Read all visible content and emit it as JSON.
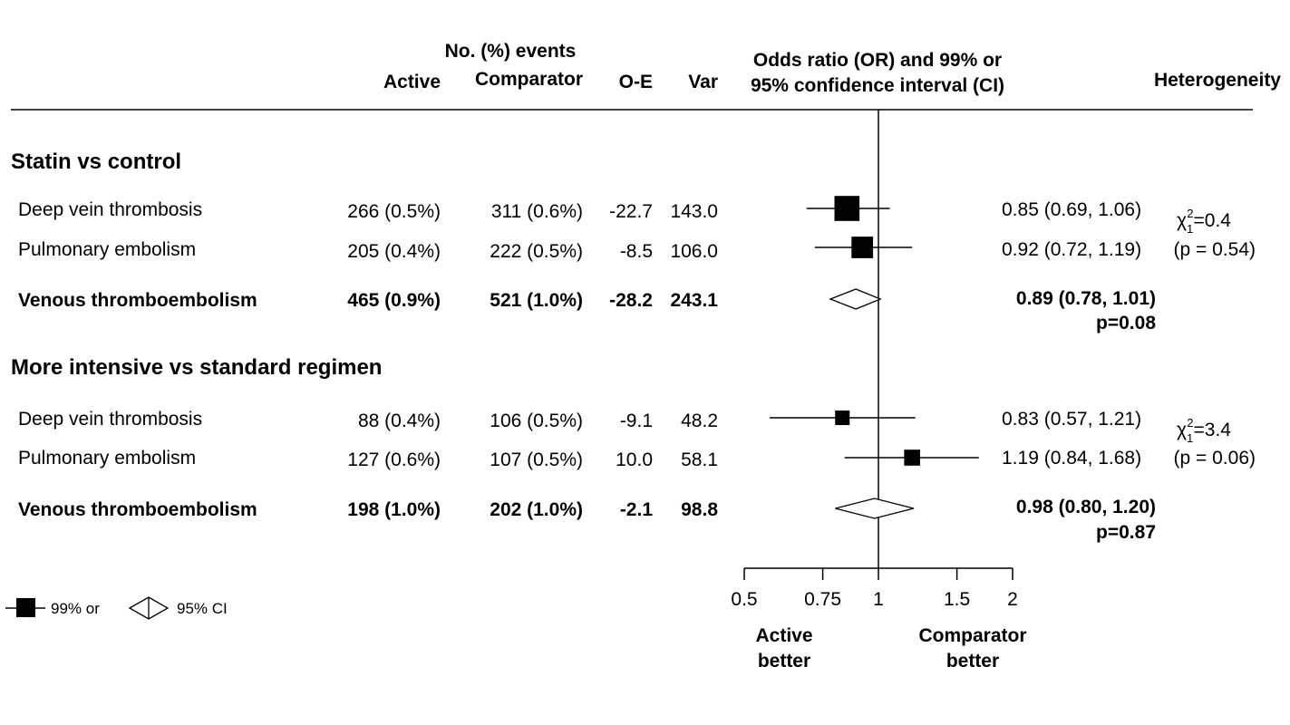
{
  "headers": {
    "events_group": "No. (%) events",
    "active": "Active",
    "comparator": "Comparator",
    "oe": "O-E",
    "var": "Var",
    "or_line1": "Odds ratio (OR) and 99% or",
    "or_line2": "95% confidence interval (CI)",
    "heterogeneity": "Heterogeneity"
  },
  "legend": {
    "square_label": "99% or",
    "diamond_label": "95% CI"
  },
  "axis": {
    "scale": "log",
    "ticks": [
      0.5,
      0.75,
      1,
      1.5,
      2
    ],
    "tick_labels": [
      "0.5",
      "0.75",
      "1",
      "1.5",
      "2"
    ],
    "left_label_1": "Active",
    "left_label_2": "better",
    "right_label_1": "Comparator",
    "right_label_2": "better"
  },
  "chart_data": {
    "type": "forest",
    "xscale": "log",
    "xlim": [
      0.5,
      2
    ],
    "reference_line": 1,
    "groups": [
      {
        "title": "Statin vs control",
        "rows": [
          {
            "label": "Deep vein thrombosis",
            "active": "266 (0.5%)",
            "comparator": "311 (0.6%)",
            "oe": "-22.7",
            "var": "143.0",
            "or": 0.85,
            "lo": 0.69,
            "hi": 1.06,
            "ci_text": "0.85 (0.69, 1.06)",
            "weight": 143.0,
            "summary": false
          },
          {
            "label": "Pulmonary embolism",
            "active": "205 (0.4%)",
            "comparator": "222 (0.5%)",
            "oe": "-8.5",
            "var": "106.0",
            "or": 0.92,
            "lo": 0.72,
            "hi": 1.19,
            "ci_text": "0.92 (0.72, 1.19)",
            "weight": 106.0,
            "summary": false
          },
          {
            "label": "Venous thromboembolism",
            "active": "465 (0.9%)",
            "comparator": "521 (1.0%)",
            "oe": "-28.2",
            "var": "243.1",
            "or": 0.89,
            "lo": 0.78,
            "hi": 1.01,
            "ci_text": "0.89 (0.78, 1.01)",
            "p_text": "p=0.08",
            "summary": true
          }
        ],
        "heterogeneity": {
          "chi_prefix": "χ",
          "chi_sub": "1",
          "chi_sup": "2",
          "chi_value": "=0.4",
          "p_text": "(p = 0.54)"
        }
      },
      {
        "title": "More intensive vs standard regimen",
        "rows": [
          {
            "label": "Deep vein thrombosis",
            "active": "88 (0.4%)",
            "comparator": "106 (0.5%)",
            "oe": "-9.1",
            "var": "48.2",
            "or": 0.83,
            "lo": 0.57,
            "hi": 1.21,
            "ci_text": "0.83 (0.57, 1.21)",
            "weight": 48.2,
            "summary": false
          },
          {
            "label": "Pulmonary embolism",
            "active": "127 (0.6%)",
            "comparator": "107 (0.5%)",
            "oe": "10.0",
            "var": "58.1",
            "or": 1.19,
            "lo": 0.84,
            "hi": 1.68,
            "ci_text": "1.19 (0.84, 1.68)",
            "weight": 58.1,
            "summary": false
          },
          {
            "label": "Venous thromboembolism",
            "active": "198 (1.0%)",
            "comparator": "202 (1.0%)",
            "oe": "-2.1",
            "var": "98.8",
            "or": 0.98,
            "lo": 0.8,
            "hi": 1.2,
            "ci_text": "0.98 (0.80, 1.20)",
            "p_text": "p=0.87",
            "summary": true
          }
        ],
        "heterogeneity": {
          "chi_prefix": "χ",
          "chi_sub": "1",
          "chi_sup": "2",
          "chi_value": "=3.4",
          "p_text": "(p = 0.06)"
        }
      }
    ]
  }
}
